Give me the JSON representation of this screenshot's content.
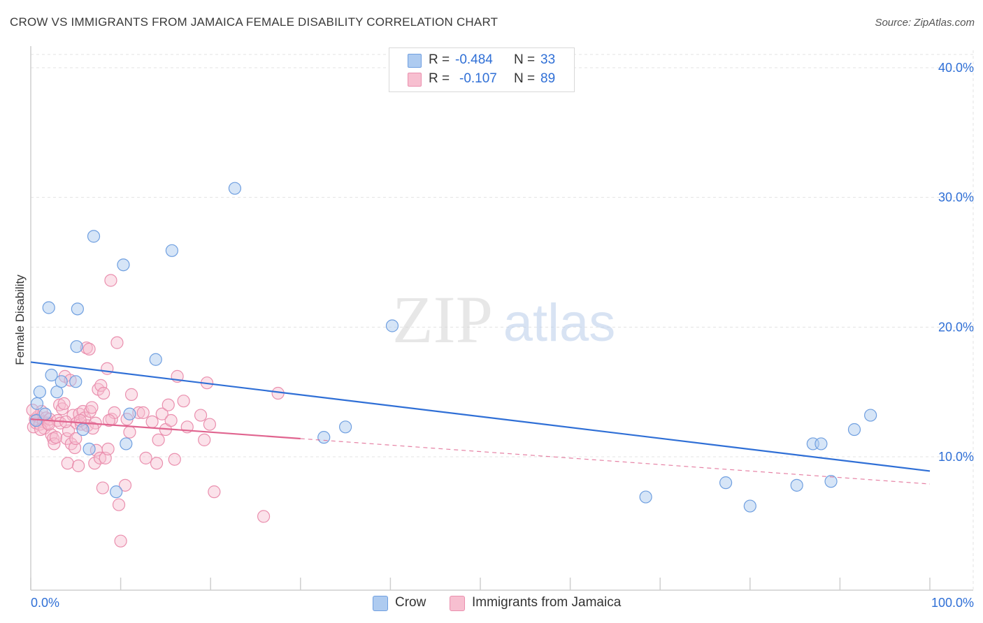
{
  "title": "CROW VS IMMIGRANTS FROM JAMAICA FEMALE DISABILITY CORRELATION CHART",
  "source": "Source: ZipAtlas.com",
  "watermark": {
    "zip": "ZIP",
    "atlas": "atlas"
  },
  "legend": {
    "crow": {
      "r_label": "R =",
      "r_value": "-0.484",
      "n_label": "N =",
      "n_value": "33"
    },
    "jamaica": {
      "r_label": "R =",
      "r_value": "-0.107",
      "n_label": "N =",
      "n_value": "89"
    }
  },
  "bottom_legend": {
    "crow": "Crow",
    "jamaica": "Immigrants from Jamaica"
  },
  "colors": {
    "crow_fill": "#aecbf0",
    "crow_stroke": "#6f9fe0",
    "crow_line": "#2f6fd6",
    "jamaica_fill": "#f7bfd0",
    "jamaica_stroke": "#ea8fae",
    "jamaica_line": "#e0648f",
    "axis_text": "#2f6fd6",
    "grid": "#e3e3e3"
  },
  "chart_data": {
    "type": "scatter",
    "title": "CROW VS IMMIGRANTS FROM JAMAICA FEMALE DISABILITY CORRELATION CHART",
    "xlabel": "",
    "ylabel": "Female Disability",
    "xlim": [
      0,
      100
    ],
    "ylim": [
      0,
      42
    ],
    "x_tick_labels": [
      "0.0%",
      "100.0%"
    ],
    "y_ticks": [
      10,
      20,
      30,
      40
    ],
    "y_tick_labels": [
      "10.0%",
      "20.0%",
      "30.0%",
      "40.0%"
    ],
    "grid": true,
    "legend_position": "top-center",
    "series": [
      {
        "name": "Crow",
        "R": -0.484,
        "N": 33,
        "trend": {
          "x": [
            0,
            100
          ],
          "y": [
            17.3,
            8.9
          ],
          "dashed_extension": null
        },
        "points": [
          [
            0.6,
            12.8
          ],
          [
            0.7,
            14.1
          ],
          [
            1.0,
            15.0
          ],
          [
            1.6,
            13.3
          ],
          [
            2.0,
            21.5
          ],
          [
            2.3,
            16.3
          ],
          [
            2.9,
            15.0
          ],
          [
            3.4,
            15.8
          ],
          [
            5.0,
            15.8
          ],
          [
            5.1,
            18.5
          ],
          [
            5.2,
            21.4
          ],
          [
            5.8,
            12.1
          ],
          [
            6.5,
            10.6
          ],
          [
            7.0,
            27.0
          ],
          [
            9.5,
            7.3
          ],
          [
            10.3,
            24.8
          ],
          [
            10.6,
            11.0
          ],
          [
            11.0,
            13.3
          ],
          [
            13.9,
            17.5
          ],
          [
            15.7,
            25.9
          ],
          [
            22.7,
            30.7
          ],
          [
            32.6,
            11.5
          ],
          [
            35.0,
            12.3
          ],
          [
            40.2,
            20.1
          ],
          [
            68.4,
            6.9
          ],
          [
            77.3,
            8.0
          ],
          [
            80.0,
            6.2
          ],
          [
            85.2,
            7.8
          ],
          [
            87.0,
            11.0
          ],
          [
            87.9,
            11.0
          ],
          [
            89.0,
            8.1
          ],
          [
            91.6,
            12.1
          ],
          [
            93.4,
            13.2
          ]
        ]
      },
      {
        "name": "Immigrants from Jamaica",
        "R": -0.107,
        "N": 89,
        "trend": {
          "x": [
            0,
            30
          ],
          "y": [
            12.9,
            11.4
          ],
          "dashed_extension": {
            "x": [
              30,
              100
            ],
            "y": [
              11.4,
              7.9
            ]
          }
        },
        "points": [
          [
            0.3,
            12.3
          ],
          [
            0.5,
            12.9
          ],
          [
            0.6,
            12.6
          ],
          [
            0.8,
            13.1
          ],
          [
            1.0,
            12.5
          ],
          [
            1.2,
            13.5
          ],
          [
            1.4,
            12.7
          ],
          [
            1.5,
            12.2
          ],
          [
            1.7,
            13.0
          ],
          [
            1.9,
            12.6
          ],
          [
            2.1,
            12.9
          ],
          [
            2.3,
            11.7
          ],
          [
            2.5,
            11.4
          ],
          [
            2.6,
            11.0
          ],
          [
            2.8,
            11.5
          ],
          [
            3.0,
            12.8
          ],
          [
            3.2,
            14.0
          ],
          [
            3.3,
            12.6
          ],
          [
            3.5,
            13.7
          ],
          [
            3.7,
            14.1
          ],
          [
            3.8,
            16.2
          ],
          [
            4.0,
            11.4
          ],
          [
            4.1,
            9.5
          ],
          [
            4.2,
            12.0
          ],
          [
            4.4,
            15.9
          ],
          [
            4.5,
            11.0
          ],
          [
            4.7,
            13.2
          ],
          [
            4.9,
            10.7
          ],
          [
            5.0,
            11.4
          ],
          [
            5.1,
            12.6
          ],
          [
            5.3,
            9.3
          ],
          [
            5.4,
            13.3
          ],
          [
            5.6,
            12.5
          ],
          [
            5.8,
            13.5
          ],
          [
            6.0,
            13.0
          ],
          [
            6.2,
            18.4
          ],
          [
            6.3,
            12.4
          ],
          [
            6.5,
            18.3
          ],
          [
            6.6,
            13.5
          ],
          [
            6.8,
            13.8
          ],
          [
            7.1,
            9.5
          ],
          [
            7.2,
            12.6
          ],
          [
            7.3,
            10.5
          ],
          [
            7.5,
            15.2
          ],
          [
            7.7,
            9.9
          ],
          [
            7.8,
            15.5
          ],
          [
            8.0,
            7.6
          ],
          [
            8.1,
            14.9
          ],
          [
            8.3,
            9.9
          ],
          [
            8.5,
            16.8
          ],
          [
            8.6,
            10.6
          ],
          [
            8.9,
            23.6
          ],
          [
            9.0,
            12.9
          ],
          [
            9.3,
            13.4
          ],
          [
            9.6,
            18.8
          ],
          [
            9.8,
            6.3
          ],
          [
            10.0,
            3.5
          ],
          [
            10.5,
            7.8
          ],
          [
            10.7,
            12.9
          ],
          [
            11.0,
            11.9
          ],
          [
            11.2,
            14.8
          ],
          [
            12.0,
            13.4
          ],
          [
            12.5,
            13.4
          ],
          [
            12.8,
            9.9
          ],
          [
            13.5,
            12.7
          ],
          [
            14.0,
            9.5
          ],
          [
            14.2,
            11.3
          ],
          [
            14.6,
            13.3
          ],
          [
            15.0,
            12.1
          ],
          [
            15.3,
            14.0
          ],
          [
            15.6,
            12.8
          ],
          [
            16.0,
            9.8
          ],
          [
            16.3,
            16.2
          ],
          [
            17.0,
            14.3
          ],
          [
            17.4,
            12.3
          ],
          [
            18.9,
            13.2
          ],
          [
            19.3,
            11.3
          ],
          [
            19.6,
            15.7
          ],
          [
            19.9,
            12.5
          ],
          [
            20.4,
            7.3
          ],
          [
            25.9,
            5.4
          ],
          [
            27.5,
            14.9
          ],
          [
            0.2,
            13.6
          ],
          [
            1.1,
            12.1
          ],
          [
            2.0,
            12.5
          ],
          [
            3.9,
            12.7
          ],
          [
            5.5,
            12.8
          ],
          [
            6.9,
            12.2
          ],
          [
            8.7,
            12.8
          ]
        ]
      }
    ]
  }
}
